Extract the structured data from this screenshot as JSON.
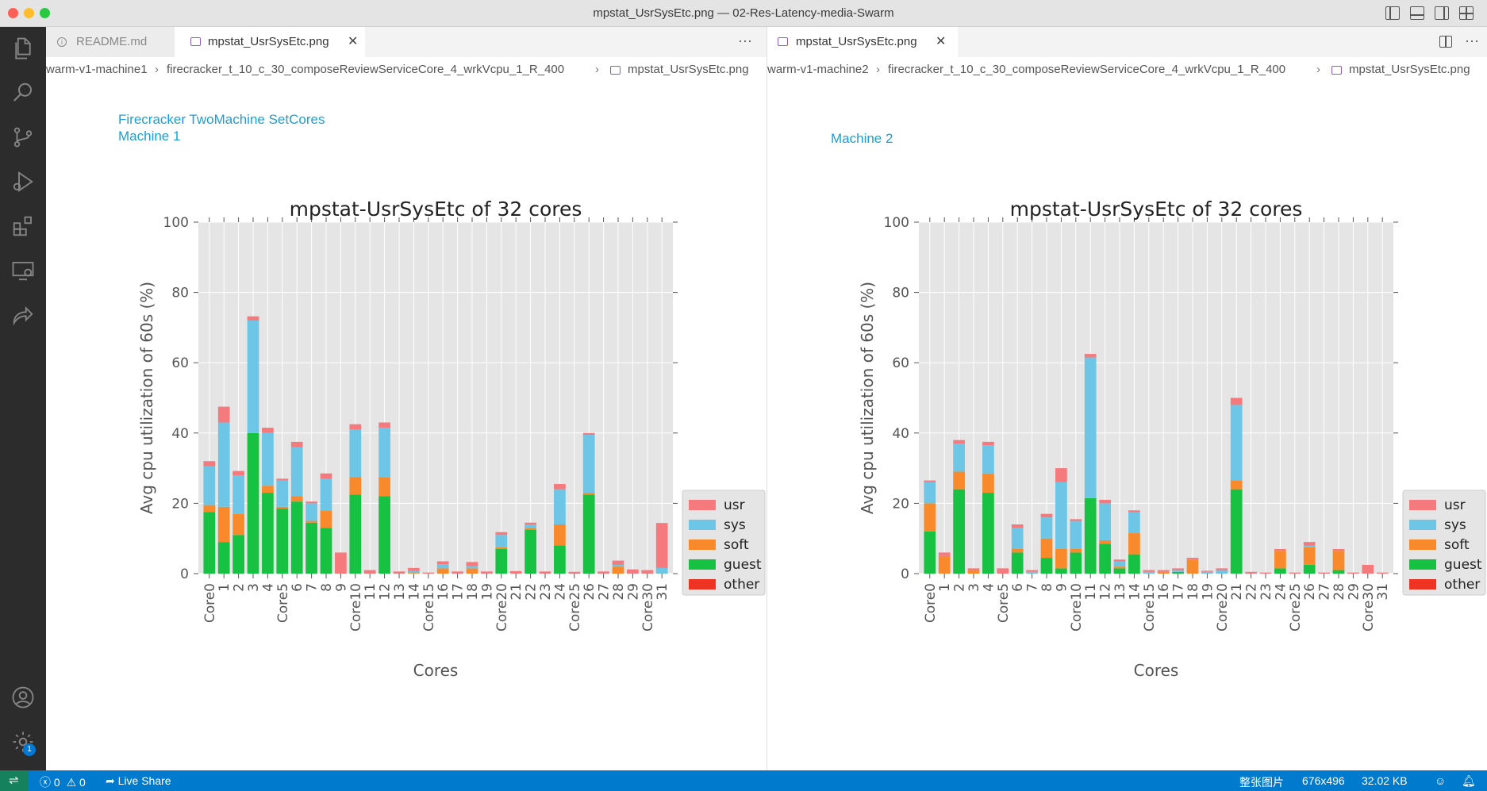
{
  "window": {
    "title": "mpstat_UsrSysEtc.png — 02-Res-Latency-media-Swarm"
  },
  "colors": {
    "usr": "#f47a7d",
    "sys": "#6ec6e6",
    "soft": "#f98a2c",
    "guest": "#17c142",
    "other": "#ee3322",
    "plot_bg": "#e5e5e5",
    "link_text": "#1a9fd6",
    "statusbar": "#007acc"
  },
  "activity_bar": {
    "icons": [
      "explorer-icon",
      "search-icon",
      "source-control-icon",
      "run-debug-icon",
      "extensions-icon",
      "remote-explorer-icon",
      "live-share-icon",
      "account-icon",
      "settings-gear-icon"
    ],
    "settings_badge": "1"
  },
  "left_pane": {
    "tabs": [
      {
        "label": "README.md",
        "icon": "info-icon",
        "active": false
      },
      {
        "label": "mpstat_UsrSysEtc.png",
        "icon": "image-file-icon",
        "active": true
      }
    ],
    "more_actions": "···",
    "breadcrumb": [
      "warm-v1-machine1",
      "firecracker_t_10_c_30_composeReviewServiceCore_4_wrkVcpu_1_R_400",
      "mpstat_UsrSysEtc.png"
    ],
    "image_caption_line1": "Firecracker TwoMachine SetCores",
    "image_caption_line2": "Machine 1"
  },
  "right_pane": {
    "tabs": [
      {
        "label": "mpstat_UsrSysEtc.png",
        "icon": "image-file-icon",
        "active": true
      }
    ],
    "more_actions": "···",
    "breadcrumb": [
      "warm-v1-machine2",
      "firecracker_t_10_c_30_composeReviewServiceCore_4_wrkVcpu_1_R_400",
      "mpstat_UsrSysEtc.png"
    ],
    "image_caption_line1": "Machine 2"
  },
  "statusbar": {
    "errors": "0",
    "warnings": "0",
    "live_share": "Live Share",
    "image_mode": "整张图片",
    "dimensions": "676x496",
    "file_size": "32.02 KB"
  },
  "chart_data": [
    {
      "type": "bar",
      "stacked": true,
      "title": "mpstat-UsrSysEtc of 32 cores",
      "xlabel": "Cores",
      "ylabel": "Avg cpu utilization of 60s (%)",
      "ylim": [
        0,
        100
      ],
      "yticks": [
        0,
        20,
        40,
        60,
        80,
        100
      ],
      "grid": true,
      "legend_position": "right",
      "categories": [
        "Core0",
        "1",
        "2",
        "3",
        "4",
        "Core5",
        "6",
        "7",
        "8",
        "9",
        "Core10",
        "11",
        "12",
        "13",
        "14",
        "Core15",
        "16",
        "17",
        "18",
        "19",
        "Core20",
        "21",
        "22",
        "23",
        "24",
        "Core25",
        "26",
        "27",
        "28",
        "29",
        "Core30",
        "31"
      ],
      "series": [
        {
          "name": "usr",
          "values": [
            1.5,
            4.5,
            1.2,
            1.2,
            1.5,
            0.5,
            1.5,
            0.5,
            1.5,
            6.0,
            1.5,
            1.0,
            1.5,
            0.6,
            0.8,
            0.3,
            0.8,
            0.6,
            1.2,
            0.6,
            0.8,
            0.7,
            0.5,
            0.6,
            1.5,
            0.5,
            0.5,
            0.6,
            1.2,
            1.2,
            1.0,
            12.8
          ]
        },
        {
          "name": "sys",
          "values": [
            11.0,
            24.0,
            11.0,
            32.0,
            15.0,
            7.5,
            14.0,
            5.0,
            9.0,
            0.0,
            13.5,
            0.0,
            14.0,
            0.0,
            0.6,
            0.0,
            1.2,
            0.0,
            0.6,
            0.0,
            3.5,
            0.0,
            1.0,
            0.0,
            10.0,
            0.0,
            16.5,
            0.0,
            0.5,
            0.0,
            0.0,
            1.6
          ]
        },
        {
          "name": "soft",
          "values": [
            2.0,
            10.0,
            6.0,
            0.0,
            2.0,
            0.5,
            1.5,
            0.5,
            5.0,
            0.0,
            5.0,
            0.0,
            5.5,
            0.0,
            0.2,
            0.0,
            1.5,
            0.0,
            1.5,
            0.0,
            0.5,
            0.0,
            0.5,
            0.0,
            6.0,
            0.0,
            0.5,
            0.0,
            2.0,
            0.0,
            0.0,
            0.0
          ]
        },
        {
          "name": "guest",
          "values": [
            17.5,
            9.0,
            11.0,
            40.0,
            23.0,
            18.5,
            20.5,
            14.5,
            13.0,
            0.0,
            22.5,
            0.0,
            22.0,
            0.0,
            0.0,
            0.0,
            0.0,
            0.0,
            0.0,
            0.0,
            7.0,
            0.0,
            12.5,
            0.0,
            8.0,
            0.0,
            22.5,
            0.0,
            0.0,
            0.0,
            0.0,
            0.0
          ]
        },
        {
          "name": "other",
          "values": [
            0,
            0,
            0,
            0,
            0,
            0,
            0,
            0,
            0,
            0,
            0,
            0,
            0,
            0,
            0,
            0,
            0,
            0,
            0,
            0,
            0,
            0,
            0,
            0,
            0,
            0,
            0,
            0,
            0,
            0,
            0,
            0
          ]
        }
      ]
    },
    {
      "type": "bar",
      "stacked": true,
      "title": "mpstat-UsrSysEtc of 32 cores",
      "xlabel": "Cores",
      "ylabel": "Avg cpu utilization of 60s (%)",
      "ylim": [
        0,
        100
      ],
      "yticks": [
        0,
        20,
        40,
        60,
        80,
        100
      ],
      "grid": true,
      "legend_position": "right",
      "categories": [
        "Core0",
        "1",
        "2",
        "3",
        "4",
        "Core5",
        "6",
        "7",
        "8",
        "9",
        "Core10",
        "11",
        "12",
        "13",
        "14",
        "Core15",
        "16",
        "17",
        "18",
        "19",
        "Core20",
        "21",
        "22",
        "23",
        "24",
        "Core25",
        "26",
        "27",
        "28",
        "29",
        "Core30",
        "31"
      ],
      "series": [
        {
          "name": "usr",
          "values": [
            0.5,
            1.0,
            1.0,
            0.5,
            1.0,
            1.5,
            1.0,
            0.5,
            1.0,
            4.0,
            0.5,
            1.0,
            1.0,
            0.5,
            0.5,
            0.5,
            0.5,
            0.5,
            0.5,
            0.3,
            0.5,
            2.0,
            0.5,
            0.3,
            0.5,
            0.3,
            1.0,
            0.3,
            0.5,
            0.3,
            2.5,
            0.3
          ]
        },
        {
          "name": "sys",
          "values": [
            6.0,
            0.0,
            8.0,
            0.0,
            8.0,
            0.0,
            6.0,
            0.5,
            6.0,
            19.0,
            8.0,
            40.0,
            10.5,
            1.5,
            6.0,
            0.5,
            0.0,
            0.5,
            0.0,
            0.5,
            1.0,
            21.5,
            0.0,
            0.0,
            0.0,
            0.0,
            0.5,
            0.0,
            0.0,
            0.0,
            0.0,
            0.0
          ]
        },
        {
          "name": "soft",
          "values": [
            8.0,
            5.0,
            5.0,
            1.0,
            5.5,
            0.0,
            1.0,
            0.0,
            5.5,
            5.5,
            1.0,
            0.0,
            1.0,
            0.5,
            6.0,
            0.0,
            0.5,
            0.0,
            4.0,
            0.0,
            0.0,
            2.5,
            0.0,
            0.0,
            5.0,
            0.0,
            5.0,
            0.0,
            5.5,
            0.0,
            0.0,
            0.0
          ]
        },
        {
          "name": "guest",
          "values": [
            12.0,
            0.0,
            24.0,
            0.0,
            23.0,
            0.0,
            6.0,
            0.0,
            4.5,
            1.5,
            6.0,
            21.5,
            8.5,
            1.5,
            5.5,
            0.0,
            0.0,
            0.5,
            0.0,
            0.0,
            0.0,
            24.0,
            0.0,
            0.0,
            1.5,
            0.0,
            2.5,
            0.0,
            1.0,
            0.0,
            0.0,
            0.0
          ]
        },
        {
          "name": "other",
          "values": [
            0,
            0,
            0,
            0,
            0,
            0,
            0,
            0,
            0,
            0,
            0,
            0,
            0,
            0,
            0,
            0,
            0,
            0,
            0,
            0,
            0,
            0,
            0,
            0,
            0,
            0,
            0,
            0,
            0,
            0,
            0,
            0
          ]
        }
      ]
    }
  ]
}
